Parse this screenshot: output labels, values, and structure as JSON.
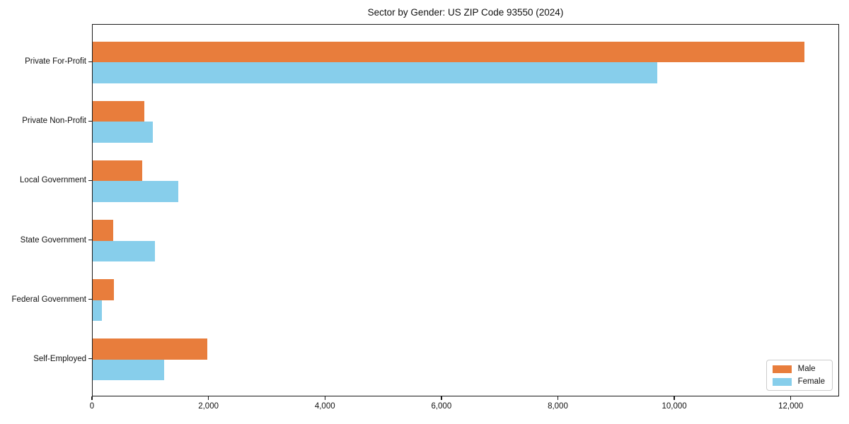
{
  "page": {
    "title": "Sector by Gender: US ZIP Code 93550 (2024)"
  },
  "chart_data": {
    "type": "bar",
    "orientation": "horizontal",
    "title": "Sector by Gender: US ZIP Code 93550 (2024)",
    "categories": [
      "Private For-Profit",
      "Private Non-Profit",
      "Local Government",
      "State Government",
      "Federal Government",
      "Self-Employed"
    ],
    "series": [
      {
        "name": "Male",
        "color": "#e87d3c",
        "values": [
          12220,
          890,
          855,
          350,
          360,
          1970
        ]
      },
      {
        "name": "Female",
        "color": "#87ceeb",
        "values": [
          9690,
          1035,
          1465,
          1065,
          155,
          1230
        ]
      }
    ],
    "xlabel": "",
    "ylabel": "",
    "xlim": [
      0,
      12830
    ],
    "x_ticks": [
      {
        "value": 0,
        "label": "0"
      },
      {
        "value": 2000,
        "label": "2,000"
      },
      {
        "value": 4000,
        "label": "4,000"
      },
      {
        "value": 6000,
        "label": "6,000"
      },
      {
        "value": 8000,
        "label": "8,000"
      },
      {
        "value": 10000,
        "label": "10,000"
      },
      {
        "value": 12000,
        "label": "12,000"
      }
    ],
    "grid": false,
    "legend_position": "lower right"
  }
}
